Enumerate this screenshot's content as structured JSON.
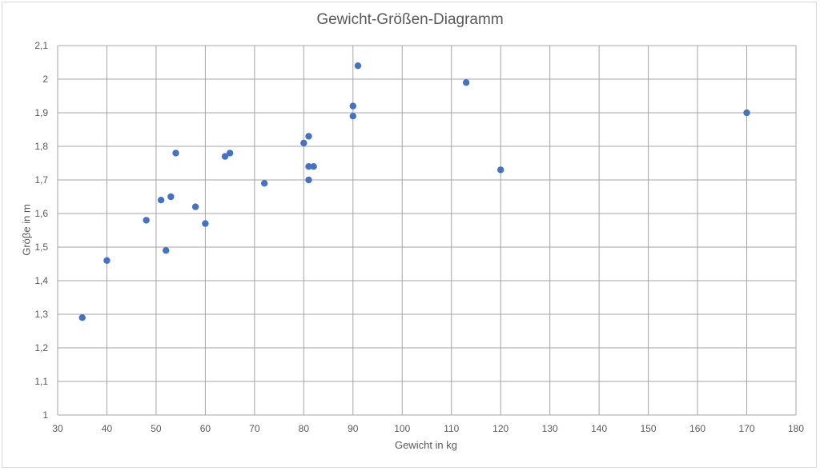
{
  "chart_data": {
    "type": "scatter",
    "title": "Gewicht-Größen-Diagramm",
    "xlabel": "Gewicht in kg",
    "ylabel": "Gröβe in m",
    "xlim": [
      30,
      180
    ],
    "ylim": [
      1,
      2.1
    ],
    "xticks": [
      "30",
      "40",
      "50",
      "60",
      "70",
      "80",
      "90",
      "100",
      "110",
      "120",
      "130",
      "140",
      "150",
      "160",
      "170",
      "180"
    ],
    "yticks": [
      "1",
      "1,1",
      "1,2",
      "1,3",
      "1,4",
      "1,5",
      "1,6",
      "1,7",
      "1,8",
      "1,9",
      "2",
      "2,1"
    ],
    "xtick_values": [
      30,
      40,
      50,
      60,
      70,
      80,
      90,
      100,
      110,
      120,
      130,
      140,
      150,
      160,
      170,
      180
    ],
    "ytick_values": [
      1,
      1.1,
      1.2,
      1.3,
      1.4,
      1.5,
      1.6,
      1.7,
      1.8,
      1.9,
      2.0,
      2.1
    ],
    "grid": true,
    "marker_color": "#4472c4",
    "grid_color": "#a6a6a6",
    "points": [
      {
        "x": 35,
        "y": 1.29
      },
      {
        "x": 40,
        "y": 1.46
      },
      {
        "x": 48,
        "y": 1.58
      },
      {
        "x": 51,
        "y": 1.64
      },
      {
        "x": 52,
        "y": 1.49
      },
      {
        "x": 53,
        "y": 1.65
      },
      {
        "x": 54,
        "y": 1.78
      },
      {
        "x": 58,
        "y": 1.62
      },
      {
        "x": 60,
        "y": 1.57
      },
      {
        "x": 64,
        "y": 1.77
      },
      {
        "x": 65,
        "y": 1.78
      },
      {
        "x": 72,
        "y": 1.69
      },
      {
        "x": 80,
        "y": 1.81
      },
      {
        "x": 81,
        "y": 1.83
      },
      {
        "x": 81,
        "y": 1.74
      },
      {
        "x": 82,
        "y": 1.74
      },
      {
        "x": 81,
        "y": 1.7
      },
      {
        "x": 90,
        "y": 1.92
      },
      {
        "x": 90,
        "y": 1.89
      },
      {
        "x": 91,
        "y": 2.04
      },
      {
        "x": 113,
        "y": 1.99
      },
      {
        "x": 120,
        "y": 1.73
      },
      {
        "x": 170,
        "y": 1.9
      }
    ]
  }
}
